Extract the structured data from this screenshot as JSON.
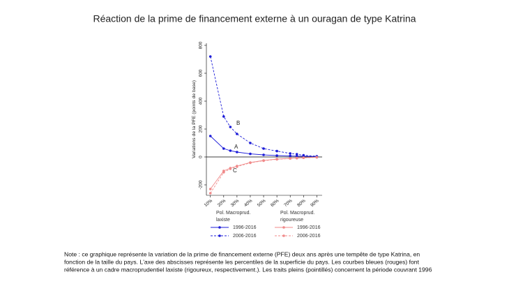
{
  "chart_data": {
    "type": "line",
    "title": "Réaction de la prime de financement externe à un ouragan de type Katrina",
    "ylabel": "Variations de la PFE (points de base)",
    "x": [
      10,
      20,
      25,
      30,
      40,
      50,
      60,
      70,
      75,
      80,
      90
    ],
    "xlim": [
      7,
      94
    ],
    "xticks": [
      {
        "value": 10,
        "label": "10%"
      },
      {
        "value": 20,
        "label": "20%"
      },
      {
        "value": 30,
        "label": "30%"
      },
      {
        "value": 40,
        "label": "40%"
      },
      {
        "value": 50,
        "label": "50%"
      },
      {
        "value": 60,
        "label": "60%"
      },
      {
        "value": 70,
        "label": "70%"
      },
      {
        "value": 80,
        "label": "80%"
      },
      {
        "value": 90,
        "label": "90%"
      }
    ],
    "ylim": [
      -275,
      815
    ],
    "yticks": [
      -200,
      0,
      200,
      400,
      600,
      800
    ],
    "refline": 0,
    "grid": false,
    "series": [
      {
        "name": "1996-2016",
        "group": 0,
        "dash": false,
        "color": "#1c1cd8",
        "values": [
          150,
          60,
          45,
          35,
          22,
          15,
          10,
          7,
          6,
          5,
          3
        ]
      },
      {
        "name": "2006-2016",
        "group": 0,
        "dash": true,
        "color": "#1c1cd8",
        "values": [
          720,
          290,
          215,
          165,
          100,
          60,
          42,
          25,
          20,
          12,
          5
        ]
      },
      {
        "name": "1996-2016",
        "group": 1,
        "dash": false,
        "color": "#f08a8a",
        "values": [
          -230,
          -100,
          -80,
          -65,
          -40,
          -25,
          -15,
          -10,
          -8,
          -5,
          -2
        ]
      },
      {
        "name": "2006-2016",
        "group": 1,
        "dash": true,
        "color": "#f08a8a",
        "values": [
          -260,
          -110,
          -85,
          -70,
          -42,
          -27,
          -17,
          -11,
          -9,
          -6,
          -3
        ]
      }
    ],
    "legend_groups": [
      [
        "Pol. Macroprud.",
        "laxiste"
      ],
      [
        "Pol. Macroprud.",
        "rigoureuse"
      ]
    ],
    "annotations": [
      "B",
      "A",
      "C"
    ],
    "note": [
      "Note : ce graphique représente la variation de la prime de financement externe (PFE) deux ans après une tempête de type Katrina, en",
      "fonction de la taille du pays. L'axe des abscisses représente les percentiles de la superficie du pays. Les courbes bleues (rouges) font",
      "référence à un cadre macroprudentiel laxiste (rigoureux, respectivement.). Les traits pleins (pointillés) concernent la période couvrant 1996"
    ]
  }
}
